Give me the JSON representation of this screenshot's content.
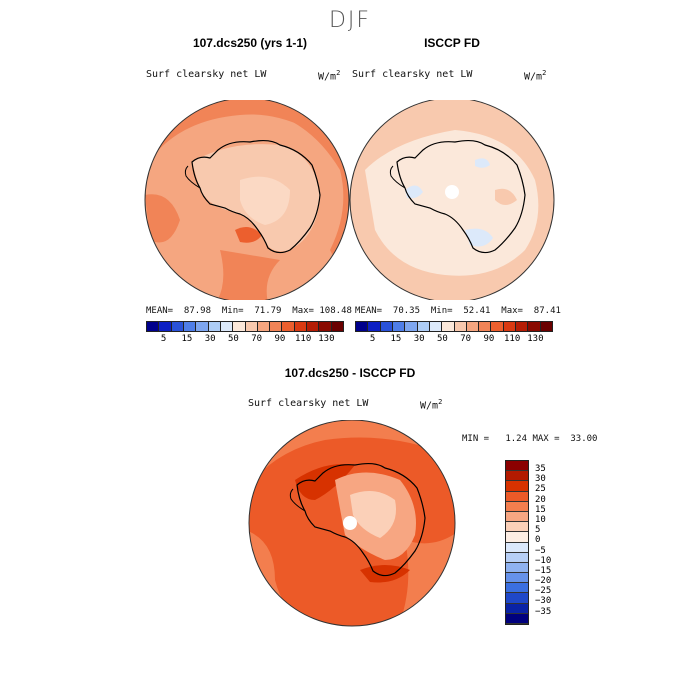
{
  "season": "DJF",
  "panels": {
    "model": {
      "title": "107.dcs250 (yrs 1-1)",
      "variable": "Surf clearsky net LW",
      "units": "W/m",
      "units_exp": "2",
      "stats": "MEAN=  87.98  Min=  71.79  Max= 108.48",
      "colorbar_ticks": [
        "5",
        "15",
        "30",
        "50",
        "70",
        "90",
        "110",
        "130"
      ]
    },
    "obs": {
      "title": "ISCCP FD",
      "variable": "Surf clearsky net LW",
      "units": "W/m",
      "units_exp": "2",
      "stats": "MEAN=  70.35  Min=  52.41  Max=  87.41",
      "colorbar_ticks": [
        "5",
        "15",
        "30",
        "50",
        "70",
        "90",
        "110",
        "130"
      ]
    },
    "diff": {
      "title": "107.dcs250 - ISCCP FD",
      "variable": "Surf clearsky net LW",
      "units": "W/m",
      "units_exp": "2",
      "stats": "MIN =   1.24 MAX =  33.00",
      "colorbar_labels": [
        "35",
        "30",
        "25",
        "20",
        "15",
        "10",
        "5",
        "0",
        "−5",
        "−10",
        "−15",
        "−20",
        "−25",
        "−30",
        "−35"
      ]
    }
  },
  "colors": {
    "abs_scale": [
      "#00008c",
      "#0d20c4",
      "#2a52d8",
      "#4f7ee8",
      "#7ea6f0",
      "#aecdf6",
      "#dce9fa",
      "#fbe8da",
      "#f8c9ae",
      "#f5a680",
      "#f18457",
      "#ec5f2e",
      "#d93a12",
      "#b51d05",
      "#8a0a00",
      "#6a0000"
    ],
    "diff_scale": [
      "#8b0000",
      "#b31a00",
      "#d73200",
      "#ec5a28",
      "#f37e4e",
      "#f7a682",
      "#fbd0b8",
      "#fdeee4",
      "#dbe8fb",
      "#b7cff6",
      "#8fb2f0",
      "#6692ea",
      "#3b6fe0",
      "#1f48c9",
      "#0a23a6",
      "#00007e"
    ],
    "coast": "#000000",
    "border": "#222222"
  }
}
